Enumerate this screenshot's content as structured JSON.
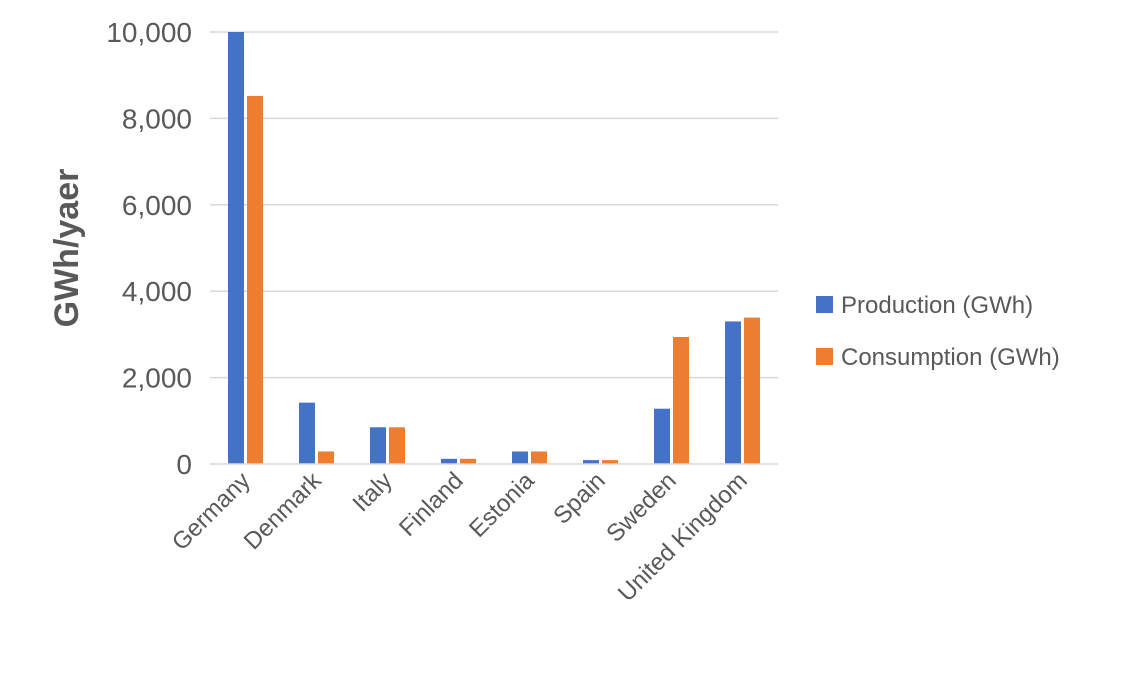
{
  "chart_data": {
    "type": "bar",
    "title": "",
    "xlabel": "",
    "ylabel": "GWh/yaer",
    "ylim": [
      0,
      10000
    ],
    "yticks": [
      0,
      2000,
      4000,
      6000,
      8000,
      10000
    ],
    "ytick_labels": [
      "0",
      "2,000",
      "4,000",
      "6,000",
      "8,000",
      "10,000"
    ],
    "categories": [
      "Germany",
      "Denmark",
      "Italy",
      "Finland",
      "Estonia",
      "Spain",
      "Sweden",
      "United Kingdom"
    ],
    "series": [
      {
        "name": "Production (GWh)",
        "color": "#4472c4",
        "values": [
          10000,
          1420,
          850,
          120,
          290,
          90,
          1280,
          3300
        ]
      },
      {
        "name": "Consumption (GWh)",
        "color": "#ed7d31",
        "values": [
          8520,
          290,
          850,
          120,
          290,
          90,
          2940,
          3390
        ]
      }
    ],
    "grid": true,
    "legend_position": "right"
  }
}
